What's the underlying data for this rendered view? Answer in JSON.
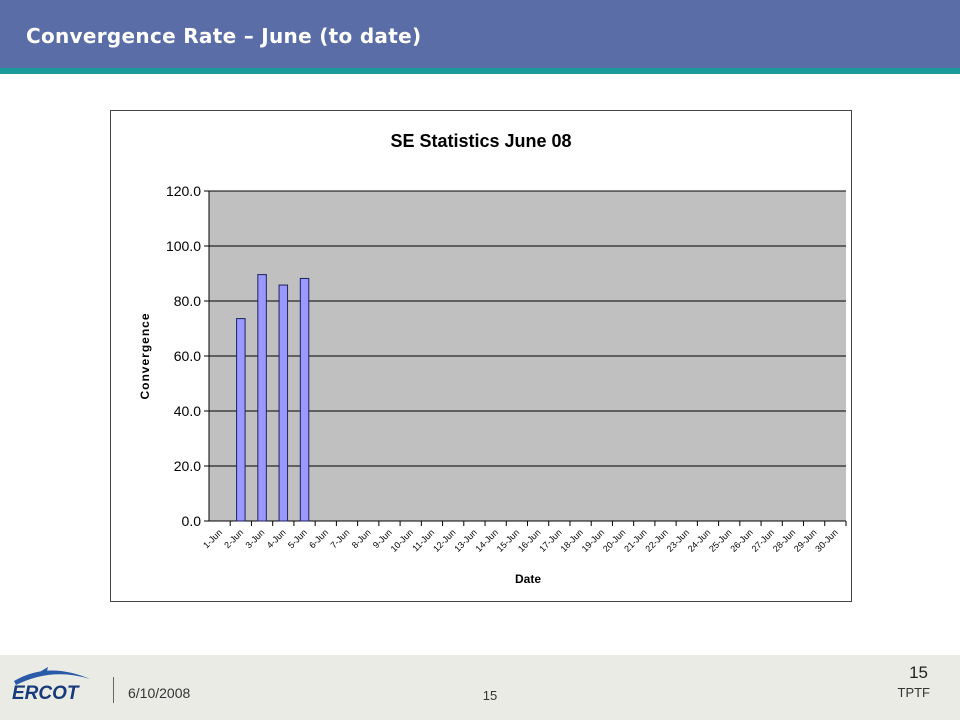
{
  "slide": {
    "title": "Convergence Rate – June (to date)"
  },
  "footer": {
    "date": "6/10/2008",
    "page_center": "15",
    "page_right": "15",
    "org": "TPTF",
    "logo_text": "ERCOT"
  },
  "colors": {
    "header": "#5a6da6",
    "stripe": "#1a9a9a",
    "plot_area": "#c0c0c0",
    "bar_fill": "#9999ff",
    "bar_stroke": "#1f1f5f"
  },
  "chart_data": {
    "type": "bar",
    "title": "SE Statistics June 08",
    "xlabel": "Date",
    "ylabel": "Convergence",
    "ylim": [
      0,
      120
    ],
    "yticks": [
      "0.0",
      "20.0",
      "40.0",
      "60.0",
      "80.0",
      "100.0",
      "120.0"
    ],
    "grid": true,
    "categories": [
      "1-Jun",
      "2-Jun",
      "3-Jun",
      "4-Jun",
      "5-Jun",
      "6-Jun",
      "7-Jun",
      "8-Jun",
      "9-Jun",
      "10-Jun",
      "11-Jun",
      "12-Jun",
      "13-Jun",
      "14-Jun",
      "15-Jun",
      "16-Jun",
      "17-Jun",
      "18-Jun",
      "19-Jun",
      "20-Jun",
      "21-Jun",
      "22-Jun",
      "23-Jun",
      "24-Jun",
      "25-Jun",
      "26-Jun",
      "27-Jun",
      "28-Jun",
      "29-Jun",
      "30-Jun"
    ],
    "values": [
      null,
      73.6,
      89.6,
      85.8,
      88.2,
      null,
      null,
      null,
      null,
      null,
      null,
      null,
      null,
      null,
      null,
      null,
      null,
      null,
      null,
      null,
      null,
      null,
      null,
      null,
      null,
      null,
      null,
      null,
      null,
      null
    ]
  }
}
